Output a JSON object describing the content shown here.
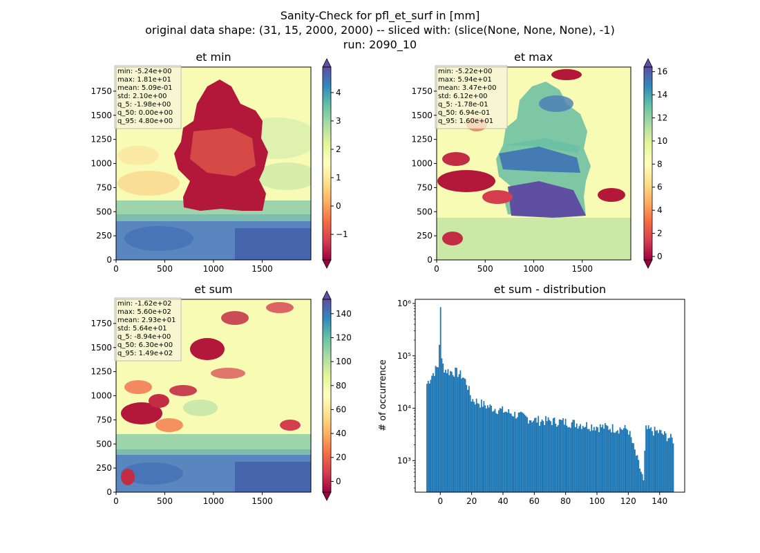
{
  "suptitle": {
    "line1": "Sanity-Check for pfl_et_surf in [mm]",
    "line2": "original data shape: (31, 15, 2000, 2000) -- sliced with: (slice(None, None, None), -1)",
    "line3": "run: 2090_10"
  },
  "chart_data": [
    {
      "type": "heatmap",
      "title": "et min",
      "xlim": [
        0,
        2000
      ],
      "ylim": [
        0,
        2000
      ],
      "x_ticks": [
        "0",
        "500",
        "1000",
        "1500"
      ],
      "y_ticks": [
        "0",
        "250",
        "500",
        "750",
        "1000",
        "1250",
        "1500",
        "1750"
      ],
      "colormap": "Spectral",
      "colorbar": {
        "range": [
          -1.9,
          4.9
        ],
        "ticks": [
          "−1",
          "0",
          "1",
          "2",
          "3",
          "4"
        ],
        "tick_values": [
          -1,
          0,
          1,
          2,
          3,
          4
        ],
        "extend": "both"
      },
      "stats": [
        "min: -5.24e+00",
        "max: 1.81e+01",
        "mean: 5.09e-01",
        "std: 2.10e+00",
        "q_5: -1.98e+00",
        "q_50: 0.00e+00",
        "q_95: 4.80e+00"
      ]
    },
    {
      "type": "heatmap",
      "title": "et max",
      "xlim": [
        0,
        2000
      ],
      "ylim": [
        0,
        2000
      ],
      "x_ticks": [
        "0",
        "500",
        "1000",
        "1500"
      ],
      "y_ticks": [
        "0",
        "250",
        "500",
        "750",
        "1000",
        "1250",
        "1500",
        "1750"
      ],
      "colormap": "Spectral",
      "colorbar": {
        "range": [
          -0.3,
          16.4
        ],
        "ticks": [
          "0",
          "2",
          "4",
          "6",
          "8",
          "10",
          "12",
          "14",
          "16"
        ],
        "tick_values": [
          0,
          2,
          4,
          6,
          8,
          10,
          12,
          14,
          16
        ],
        "extend": "both"
      },
      "stats": [
        "min: -5.22e+00",
        "max: 5.94e+01",
        "mean: 3.47e+00",
        "std: 6.12e+00",
        "q_5: -1.78e-01",
        "q_50: 6.94e-01",
        "q_95: 1.60e+01"
      ]
    },
    {
      "type": "heatmap",
      "title": "et sum",
      "xlim": [
        0,
        2000
      ],
      "ylim": [
        0,
        2000
      ],
      "x_ticks": [
        "0",
        "500",
        "1000",
        "1500"
      ],
      "y_ticks": [
        "0",
        "250",
        "500",
        "750",
        "1000",
        "1250",
        "1500",
        "1750"
      ],
      "colormap": "Spectral",
      "colorbar": {
        "range": [
          -9,
          152
        ],
        "ticks": [
          "0",
          "20",
          "40",
          "60",
          "80",
          "100",
          "120",
          "140"
        ],
        "tick_values": [
          0,
          20,
          40,
          60,
          80,
          100,
          120,
          140
        ],
        "extend": "both"
      },
      "stats": [
        "min: -1.62e+02",
        "max: 5.60e+02",
        "mean: 2.93e+01",
        "std: 5.64e+01",
        "q_5: -8.94e+00",
        "q_50: 6.30e+00",
        "q_95: 1.49e+02"
      ]
    },
    {
      "type": "bar",
      "title": "et sum - distribution",
      "xlabel": "",
      "ylabel": "# of occurrence",
      "log_y": true,
      "xlim": [
        -16,
        156
      ],
      "ylim": [
        250,
        1200000
      ],
      "x_ticks": [
        0,
        20,
        40,
        60,
        80,
        100,
        120,
        140
      ],
      "y_ticks": [
        {
          "value": 1000,
          "label": "10³"
        },
        {
          "value": 10000,
          "label": "10⁴"
        },
        {
          "value": 100000,
          "label": "10⁵"
        },
        {
          "value": 1000000,
          "label": "10⁶"
        }
      ],
      "bin_range": [
        -8.9,
        148.9
      ],
      "bin_width": 0.79,
      "profile": [
        [
          -8.9,
          28000
        ],
        [
          -6,
          40000
        ],
        [
          -3,
          55000
        ],
        [
          -1,
          65000
        ],
        [
          0,
          850000
        ],
        [
          1,
          75000
        ],
        [
          3,
          55000
        ],
        [
          6,
          50000
        ],
        [
          10,
          50000
        ],
        [
          14,
          42000
        ],
        [
          17,
          30000
        ],
        [
          20,
          15000
        ],
        [
          30,
          11000
        ],
        [
          40,
          9000
        ],
        [
          60,
          6000
        ],
        [
          80,
          5500
        ],
        [
          100,
          4500
        ],
        [
          120,
          4000
        ],
        [
          130,
          400
        ],
        [
          131,
          4000
        ],
        [
          140,
          3500
        ],
        [
          148.9,
          2500
        ]
      ],
      "bar_color": "#1f77b4"
    }
  ]
}
